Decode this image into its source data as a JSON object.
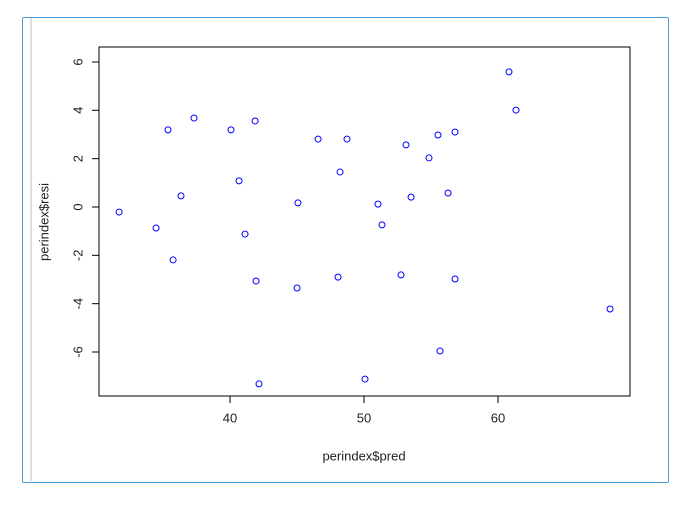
{
  "chart_data": {
    "type": "scatter",
    "x_label": "perindex$pred",
    "y_label": "perindex$resi",
    "color": "#0000ff",
    "xlim": [
      30.22,
      69.85
    ],
    "ylim": [
      -7.82,
      6.62
    ],
    "xticks": [
      40,
      50,
      60
    ],
    "yticks": [
      -6,
      -4,
      -2,
      0,
      2,
      4,
      6
    ],
    "x": [
      31.72,
      34.48,
      35.37,
      35.75,
      36.34,
      37.31,
      40.07,
      40.67,
      41.12,
      41.87,
      41.94,
      42.16,
      45.0,
      45.07,
      46.57,
      48.06,
      48.21,
      48.73,
      50.07,
      51.04,
      51.34,
      52.76,
      53.13,
      53.51,
      54.85,
      55.52,
      55.67,
      56.27,
      56.79,
      56.79,
      60.82,
      61.34,
      68.36
    ],
    "values": [
      -0.21,
      -0.87,
      3.19,
      -2.19,
      0.46,
      3.68,
      3.19,
      1.08,
      -1.12,
      3.56,
      -3.06,
      -7.32,
      -3.35,
      0.17,
      2.81,
      -2.9,
      1.45,
      2.81,
      -7.12,
      0.12,
      -0.74,
      -2.81,
      2.57,
      0.41,
      2.03,
      2.98,
      -5.96,
      0.58,
      3.1,
      -2.98,
      5.59,
      4.01,
      -4.22
    ]
  }
}
